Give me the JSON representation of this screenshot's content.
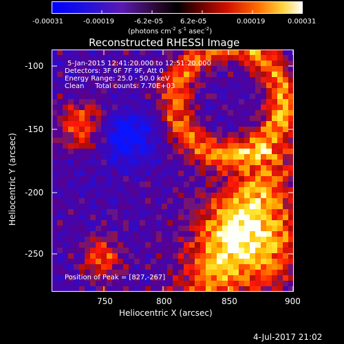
{
  "colorbar": {
    "tick_labels": [
      "-0.00031",
      "-0.00019",
      "-6.2e-05",
      "6.2e-05",
      "0.00019",
      "0.00031"
    ],
    "unit": "(photons cm^-2 s^-1 asec^-2)",
    "unit_pre": "(photons cm",
    "unit_e1": "-2",
    "unit_mid": " s",
    "unit_e2": "-1",
    "unit_mid2": " asec",
    "unit_e3": "-2",
    "unit_post": ")"
  },
  "title": "Reconstructed RHESSI Image",
  "overlay": {
    "line1": "5-Jan-2015 12:41:20.000 to 12:51:20.000",
    "line2": "Detectors: 3F 6F 7F 9F, Att 0",
    "line3": "Energy Range: 25.0 - 50.0 keV",
    "line4_a": "Clean",
    "line4_b": "Total counts: 7.70E+03",
    "peak": "Position of Peak = [827,-267]"
  },
  "axes": {
    "xlabel": "Heliocentric X (arcsec)",
    "ylabel": "Heliocentric Y (arcsec)",
    "x_ticks": [
      "750",
      "800",
      "850",
      "900"
    ],
    "y_ticks": [
      "-100",
      "-150",
      "-200",
      "-250"
    ]
  },
  "footer_date": "4-Jul-2017 21:02"
}
